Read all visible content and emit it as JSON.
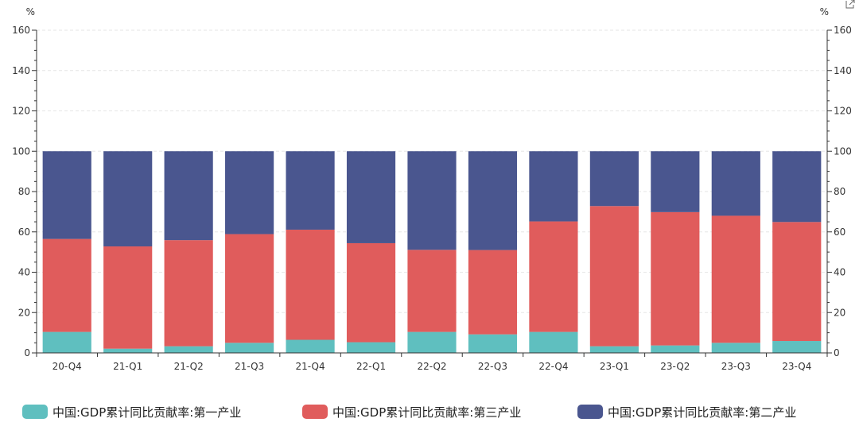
{
  "chart_data": {
    "type": "bar",
    "stacked": true,
    "categories": [
      "20-Q4",
      "21-Q1",
      "21-Q2",
      "21-Q3",
      "21-Q4",
      "22-Q1",
      "22-Q2",
      "22-Q3",
      "22-Q4",
      "23-Q1",
      "23-Q2",
      "23-Q3",
      "23-Q4"
    ],
    "series": [
      {
        "name": "中国:GDP累计同比贡献率:第一产业",
        "color": "#5fbfbf",
        "values": [
          10.4,
          2.1,
          3.3,
          5.0,
          6.5,
          5.3,
          10.4,
          9.2,
          10.4,
          3.3,
          3.7,
          5.0,
          5.9
        ]
      },
      {
        "name": "中国:GDP累计同比贡献率:第三产业",
        "color": "#e05c5c",
        "values": [
          46.1,
          50.7,
          52.6,
          53.9,
          54.6,
          49.1,
          40.7,
          41.8,
          54.8,
          69.5,
          66.1,
          63.0,
          59.0
        ]
      },
      {
        "name": "中国:GDP累计同比贡献率:第二产业",
        "color": "#4a568f",
        "values": [
          43.5,
          47.2,
          44.1,
          41.1,
          38.9,
          45.6,
          48.9,
          49.0,
          34.8,
          27.2,
          30.2,
          32.0,
          35.1
        ]
      }
    ],
    "y_unit_left": "%",
    "y_unit_right": "%",
    "ylim": [
      0,
      160
    ],
    "yticks": [
      0,
      20,
      40,
      60,
      80,
      100,
      120,
      140,
      160
    ],
    "grid": true,
    "legend_position": "bottom"
  }
}
